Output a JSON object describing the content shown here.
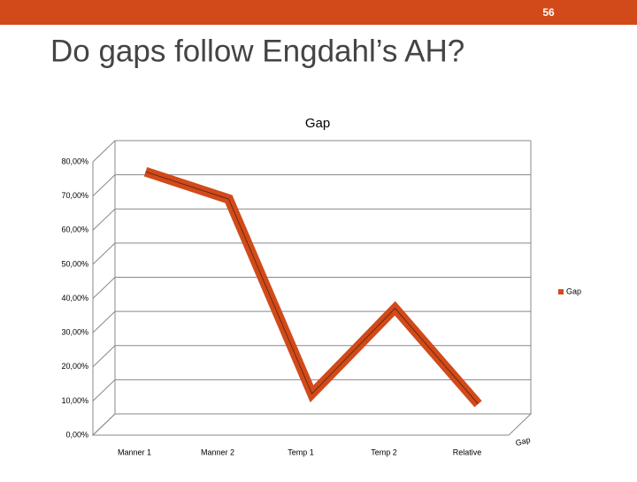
{
  "slide": {
    "number": "56",
    "title": "Do gaps follow Engdahl’s AH?"
  },
  "chart_data": {
    "type": "line",
    "title": "Gap",
    "depth_label": "Gap",
    "categories": [
      "Manner 1",
      "Manner 2",
      "Temp 1",
      "Temp 2",
      "Relative"
    ],
    "series": [
      {
        "name": "Gap",
        "color": "#d24a1a",
        "values": [
          74,
          66,
          9,
          34,
          6
        ]
      }
    ],
    "ylim": [
      0,
      80
    ],
    "yticks": [
      {
        "value": 0,
        "label": "0,00%"
      },
      {
        "value": 10,
        "label": "10,00%"
      },
      {
        "value": 20,
        "label": "20,00%"
      },
      {
        "value": 30,
        "label": "30,00%"
      },
      {
        "value": 40,
        "label": "40,00%"
      },
      {
        "value": 50,
        "label": "50,00%"
      },
      {
        "value": 60,
        "label": "60,00%"
      },
      {
        "value": 70,
        "label": "70,00%"
      },
      {
        "value": 80,
        "label": "80,00%"
      }
    ],
    "grid": true,
    "legend": "right"
  }
}
